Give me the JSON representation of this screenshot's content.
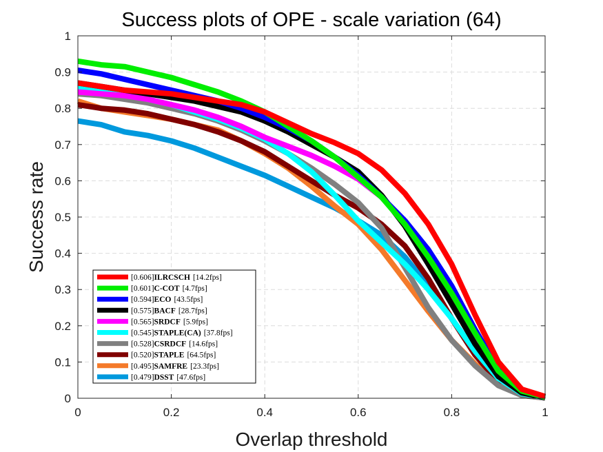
{
  "chart_data": {
    "type": "line",
    "title": "Success plots of OPE - scale variation (64)",
    "xlabel": "Overlap threshold",
    "ylabel": "Success rate",
    "xlim": [
      0,
      1
    ],
    "ylim": [
      0,
      1
    ],
    "grid": true,
    "legend_position": "bottom-left",
    "x_ticks": [
      "0",
      "0.2",
      "0.4",
      "0.6",
      "0.8",
      "1"
    ],
    "y_ticks": [
      "0",
      "0.1",
      "0.2",
      "0.3",
      "0.4",
      "0.5",
      "0.6",
      "0.7",
      "0.8",
      "0.9",
      "1"
    ],
    "x": [
      0,
      0.05,
      0.1,
      0.15,
      0.2,
      0.25,
      0.3,
      0.35,
      0.4,
      0.45,
      0.5,
      0.55,
      0.6,
      0.65,
      0.7,
      0.75,
      0.8,
      0.85,
      0.9,
      0.95,
      1
    ],
    "series": [
      {
        "name": "ILRCSCH",
        "score": "[0.606]",
        "fps": "[14.2fps]",
        "color": "#ff0000",
        "values": [
          0.87,
          0.86,
          0.85,
          0.845,
          0.84,
          0.83,
          0.82,
          0.81,
          0.79,
          0.76,
          0.73,
          0.705,
          0.675,
          0.63,
          0.565,
          0.48,
          0.37,
          0.23,
          0.1,
          0.025,
          0.005
        ]
      },
      {
        "name": "C-COT",
        "score": "[0.601]",
        "fps": "[4.7fps]",
        "color": "#00ee00",
        "values": [
          0.93,
          0.92,
          0.915,
          0.9,
          0.885,
          0.865,
          0.845,
          0.82,
          0.79,
          0.75,
          0.71,
          0.665,
          0.61,
          0.555,
          0.48,
          0.39,
          0.29,
          0.18,
          0.075,
          0.02,
          0.003
        ]
      },
      {
        "name": "ECO",
        "score": "[0.594]",
        "fps": "[43.5fps]",
        "color": "#0000ff",
        "values": [
          0.905,
          0.895,
          0.88,
          0.865,
          0.85,
          0.835,
          0.82,
          0.8,
          0.775,
          0.745,
          0.71,
          0.665,
          0.615,
          0.555,
          0.49,
          0.41,
          0.31,
          0.19,
          0.08,
          0.022,
          0.004
        ]
      },
      {
        "name": "BACF",
        "score": "[0.575]",
        "fps": "[28.7fps]",
        "color": "#000000",
        "values": [
          0.87,
          0.86,
          0.85,
          0.84,
          0.83,
          0.82,
          0.805,
          0.79,
          0.765,
          0.735,
          0.7,
          0.665,
          0.625,
          0.56,
          0.475,
          0.37,
          0.26,
          0.15,
          0.06,
          0.015,
          0.002
        ]
      },
      {
        "name": "SRDCF",
        "score": "[0.565]",
        "fps": "[5.9fps]",
        "color": "#ff00ff",
        "values": [
          0.845,
          0.84,
          0.835,
          0.825,
          0.81,
          0.795,
          0.775,
          0.75,
          0.72,
          0.695,
          0.67,
          0.64,
          0.605,
          0.555,
          0.485,
          0.395,
          0.29,
          0.175,
          0.07,
          0.018,
          0.003
        ]
      },
      {
        "name": "STAPLE(CA)",
        "score": "[0.545]",
        "fps": "[37.8fps]",
        "color": "#00ffff",
        "values": [
          0.855,
          0.85,
          0.84,
          0.825,
          0.81,
          0.79,
          0.77,
          0.745,
          0.715,
          0.675,
          0.625,
          0.56,
          0.49,
          0.43,
          0.37,
          0.3,
          0.22,
          0.13,
          0.055,
          0.013,
          0.002
        ]
      },
      {
        "name": "CSRDCF",
        "score": "[0.528]",
        "fps": "[14.6fps]",
        "color": "#808080",
        "values": [
          0.84,
          0.835,
          0.825,
          0.815,
          0.8,
          0.785,
          0.765,
          0.74,
          0.71,
          0.675,
          0.635,
          0.59,
          0.54,
          0.47,
          0.36,
          0.25,
          0.16,
          0.09,
          0.035,
          0.008,
          0.001
        ]
      },
      {
        "name": "STAPLE",
        "score": "[0.520]",
        "fps": "[64.5fps]",
        "color": "#800000",
        "values": [
          0.81,
          0.8,
          0.795,
          0.785,
          0.77,
          0.755,
          0.735,
          0.71,
          0.68,
          0.64,
          0.6,
          0.56,
          0.525,
          0.48,
          0.42,
          0.33,
          0.22,
          0.12,
          0.045,
          0.01,
          0.001
        ]
      },
      {
        "name": "SAMFRE",
        "score": "[0.495]",
        "fps": "[23.3fps]",
        "color": "#f47a2a",
        "values": [
          0.82,
          0.8,
          0.79,
          0.78,
          0.77,
          0.755,
          0.74,
          0.71,
          0.675,
          0.635,
          0.585,
          0.53,
          0.48,
          0.41,
          0.325,
          0.24,
          0.16,
          0.095,
          0.04,
          0.008,
          0.001
        ]
      },
      {
        "name": "DSST",
        "score": "[0.479]",
        "fps": "[47.6fps]",
        "color": "#0099dd",
        "values": [
          0.765,
          0.755,
          0.735,
          0.725,
          0.71,
          0.69,
          0.665,
          0.64,
          0.615,
          0.585,
          0.555,
          0.525,
          0.49,
          0.45,
          0.39,
          0.31,
          0.22,
          0.13,
          0.05,
          0.012,
          0.001
        ]
      }
    ]
  }
}
